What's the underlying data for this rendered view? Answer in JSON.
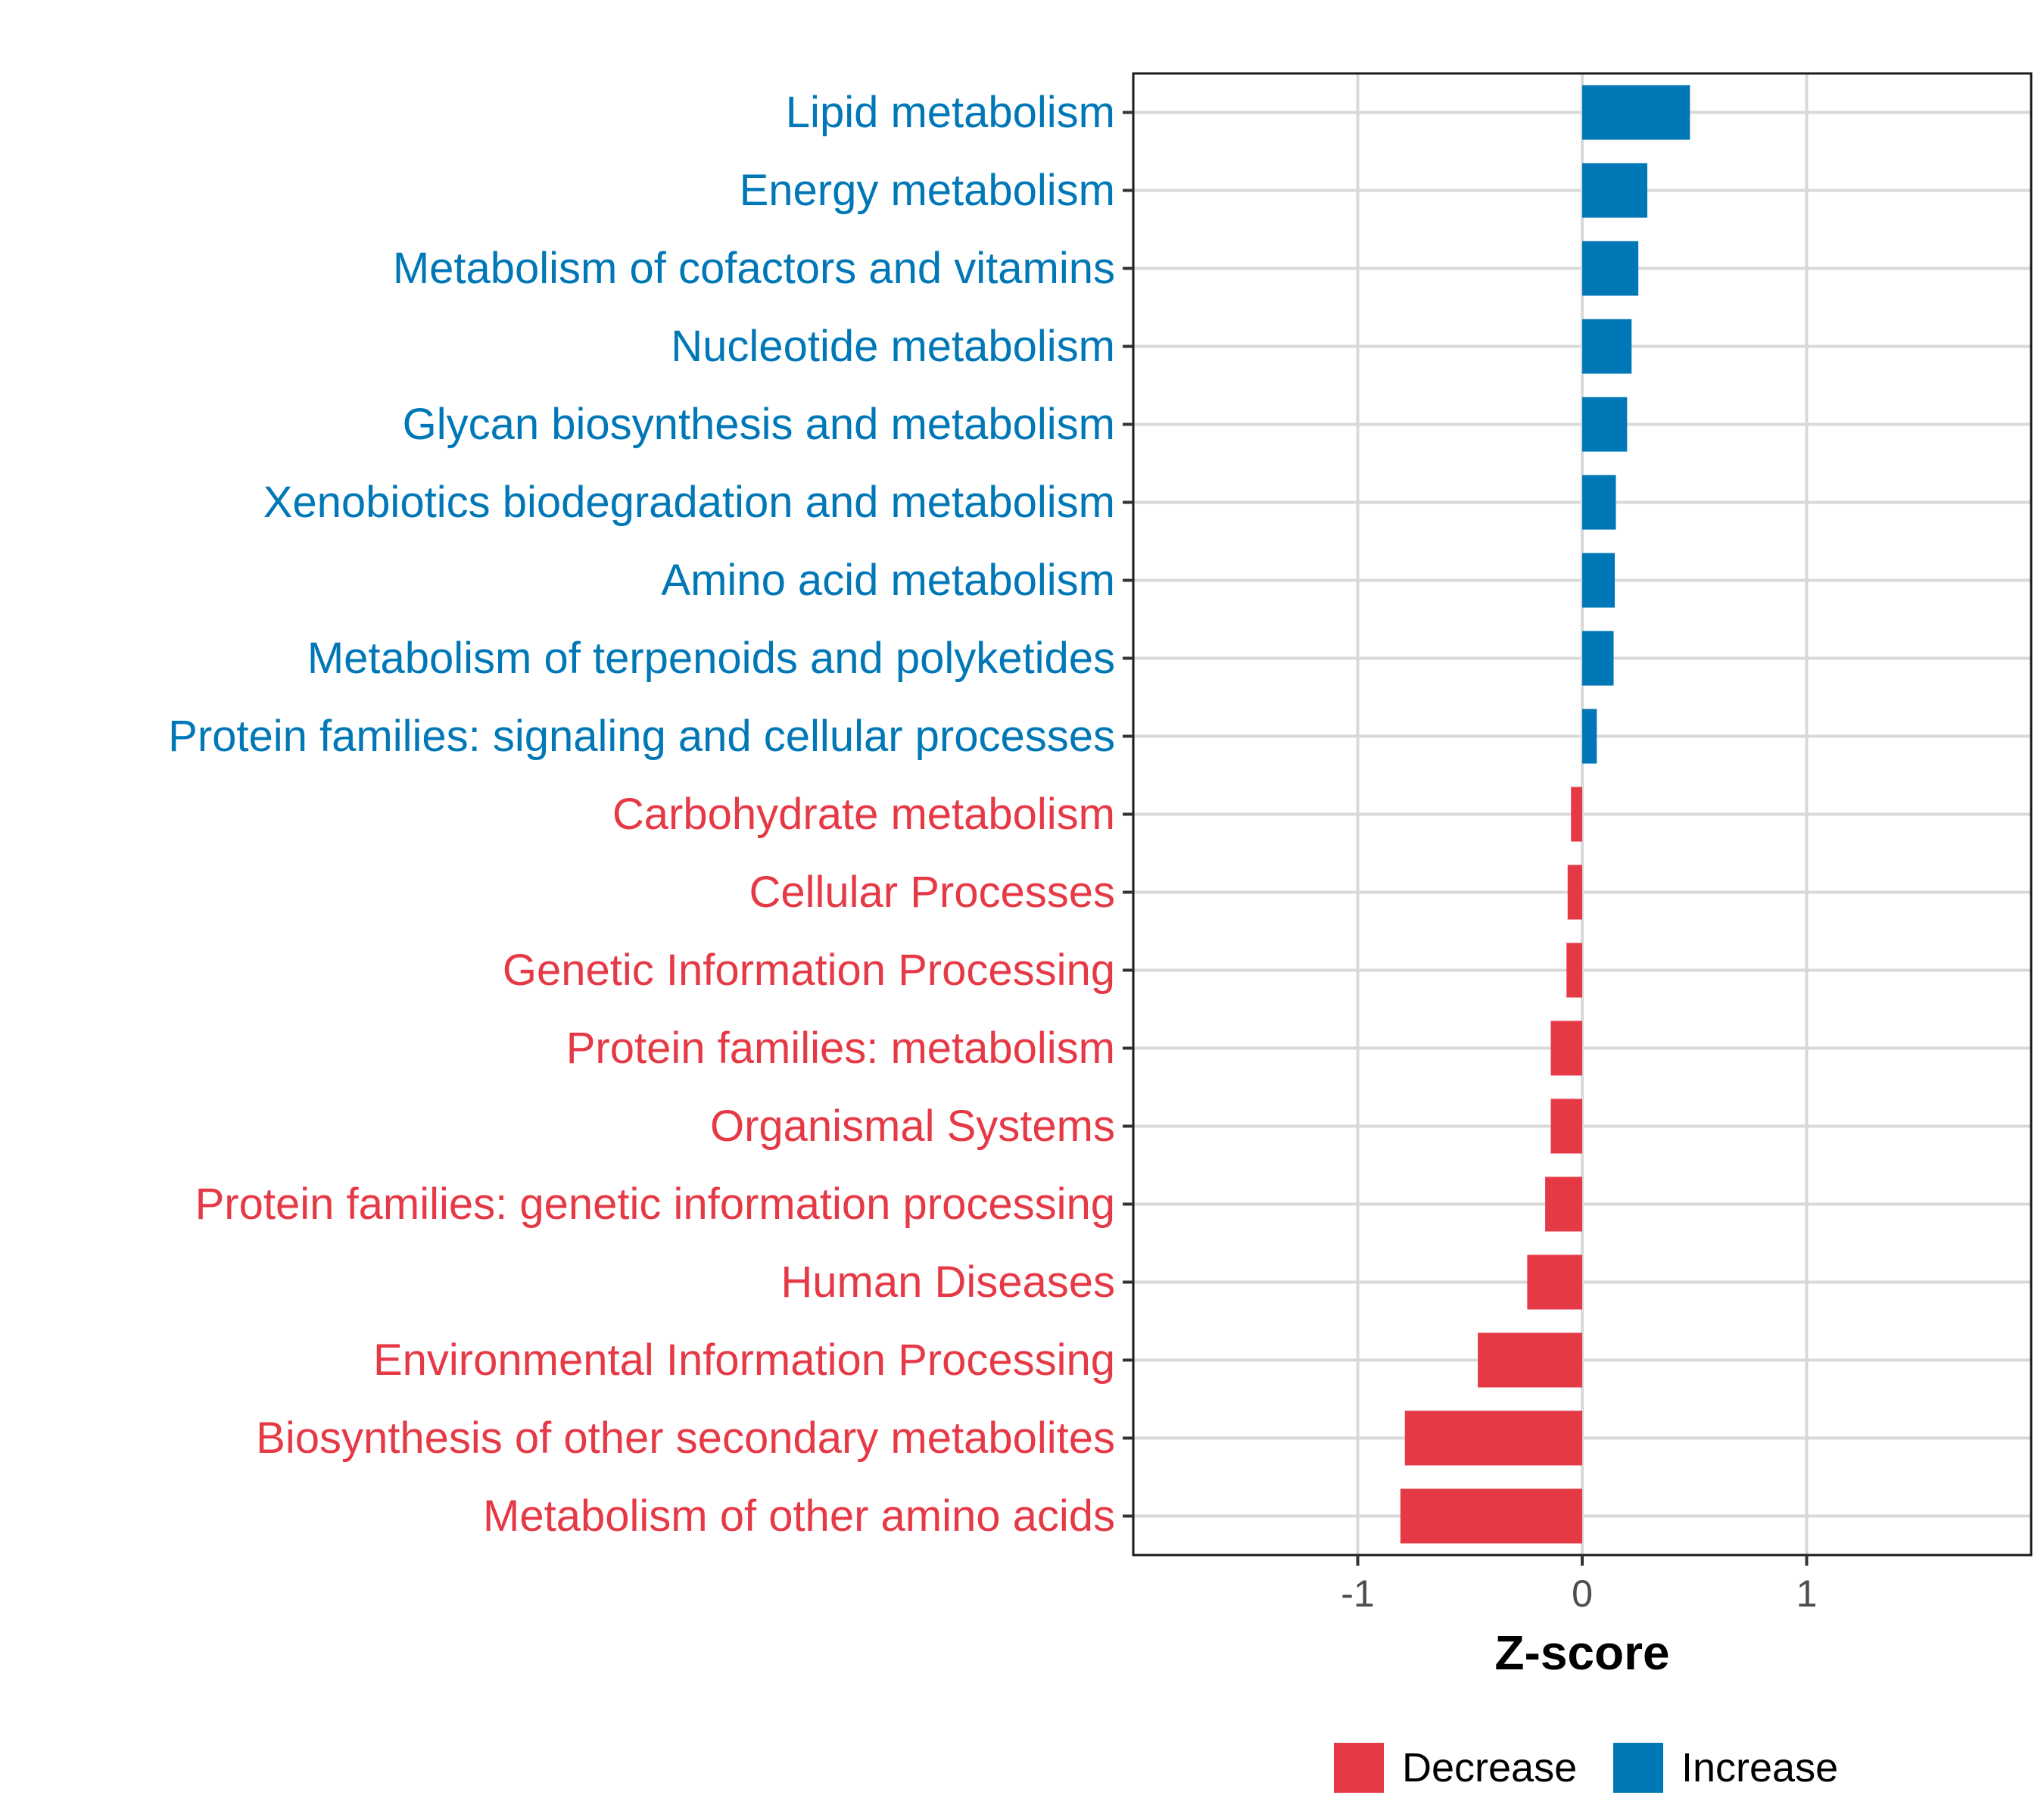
{
  "chart_data": {
    "type": "bar",
    "orientation": "horizontal",
    "title": "",
    "xlabel": "Z-score",
    "ylabel": "",
    "xlim": [
      -2,
      2
    ],
    "xticks": [
      -1,
      0,
      1
    ],
    "xtick_labels": [
      "-1",
      "0",
      "1"
    ],
    "grid": true,
    "categories": [
      "Lipid metabolism",
      "Energy metabolism",
      "Metabolism of cofactors and vitamins",
      "Nucleotide metabolism",
      "Glycan biosynthesis and metabolism",
      "Xenobiotics biodegradation and metabolism",
      "Amino acid metabolism",
      "Metabolism of terpenoids and polyketides",
      "Protein families: signaling and cellular processes",
      "Carbohydrate metabolism",
      "Cellular Processes",
      "Genetic Information Processing",
      "Protein families: metabolism",
      "Organismal Systems",
      "Protein families: genetic information processing",
      "Human Diseases",
      "Environmental Information Processing",
      "Biosynthesis of other secondary metabolites",
      "Metabolism of other amino acids"
    ],
    "values": [
      0.48,
      0.29,
      0.25,
      0.22,
      0.2,
      0.15,
      0.145,
      0.14,
      0.065,
      -0.05,
      -0.065,
      -0.07,
      -0.14,
      -0.14,
      -0.165,
      -0.245,
      -0.465,
      -0.79,
      -0.81
    ],
    "groups": [
      "Increase",
      "Increase",
      "Increase",
      "Increase",
      "Increase",
      "Increase",
      "Increase",
      "Increase",
      "Increase",
      "Decrease",
      "Decrease",
      "Decrease",
      "Decrease",
      "Decrease",
      "Decrease",
      "Decrease",
      "Decrease",
      "Decrease",
      "Decrease"
    ],
    "legend": {
      "position": "bottom",
      "entries": [
        {
          "label": "Decrease",
          "color": "#E63946"
        },
        {
          "label": "Increase",
          "color": "#0077B6"
        }
      ]
    }
  }
}
